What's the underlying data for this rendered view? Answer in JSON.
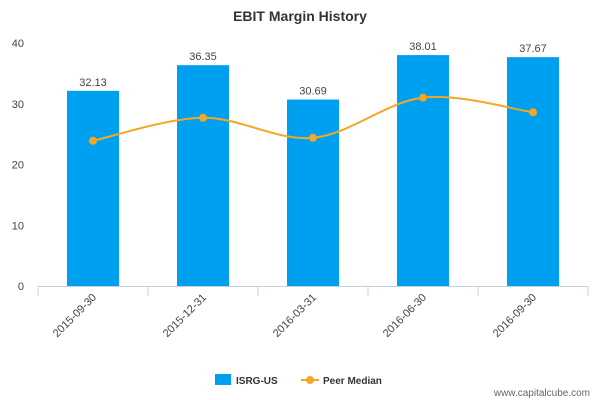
{
  "chart_data": {
    "type": "bar",
    "title": "EBIT Margin History",
    "categories": [
      "2015-09-30",
      "2015-12-31",
      "2016-03-31",
      "2016-06-30",
      "2016-09-30"
    ],
    "series": [
      {
        "name": "ISRG-US",
        "type": "bar",
        "color": "#00a0f0",
        "values": [
          32.13,
          36.35,
          30.69,
          38.01,
          37.67
        ],
        "data_labels": [
          "32.13",
          "36.35",
          "30.69",
          "38.01",
          "37.67"
        ]
      },
      {
        "name": "Peer Median",
        "type": "line",
        "color": "#f5a623",
        "values": [
          23.9,
          27.7,
          24.4,
          31.0,
          28.6
        ]
      }
    ],
    "ylim": [
      0,
      40
    ],
    "yticks": [
      0,
      10,
      20,
      30,
      40
    ],
    "xlabel": "",
    "ylabel": "",
    "grid": false,
    "legend": "bottom-center"
  },
  "credit": "www.capitalcube.com"
}
